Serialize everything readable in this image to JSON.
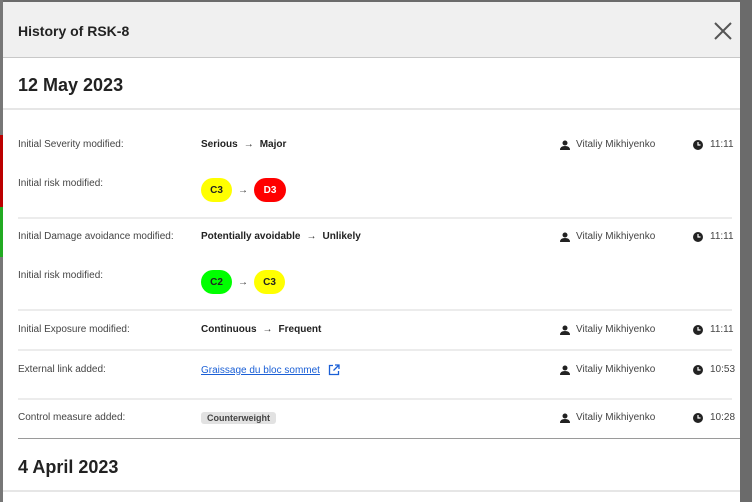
{
  "modal": {
    "title": "History of RSK-8"
  },
  "groups": [
    {
      "date": "12 May 2023"
    },
    {
      "date": "4 April 2023"
    }
  ],
  "entries": [
    {
      "label": "Initial Severity modified:",
      "from": "Serious",
      "to": "Major",
      "user": "Vitaliy Mikhiyenko",
      "time": "11:11"
    },
    {
      "label": "Initial risk modified:",
      "from": "C3",
      "to": "D3",
      "from_color": "#ffff00",
      "to_color": "#ff0000"
    },
    {
      "label": "Initial Damage avoidance modified:",
      "from": "Potentially avoidable",
      "to": "Unlikely",
      "user": "Vitaliy Mikhiyenko",
      "time": "11:11"
    },
    {
      "label": "Initial risk modified:",
      "from": "C2",
      "to": "C3",
      "from_color": "#00ff00",
      "to_color": "#ffff00"
    },
    {
      "label": "Initial Exposure modified:",
      "from": "Continuous",
      "to": "Frequent",
      "user": "Vitaliy Mikhiyenko",
      "time": "11:11"
    },
    {
      "label": "External link added:",
      "link": "Graissage du bloc sommet",
      "user": "Vitaliy Mikhiyenko",
      "time": "10:53"
    },
    {
      "label": "Control measure added:",
      "tag": "Counterweight",
      "user": "Vitaliy Mikhiyenko",
      "time": "10:28"
    }
  ],
  "arrow": "→"
}
